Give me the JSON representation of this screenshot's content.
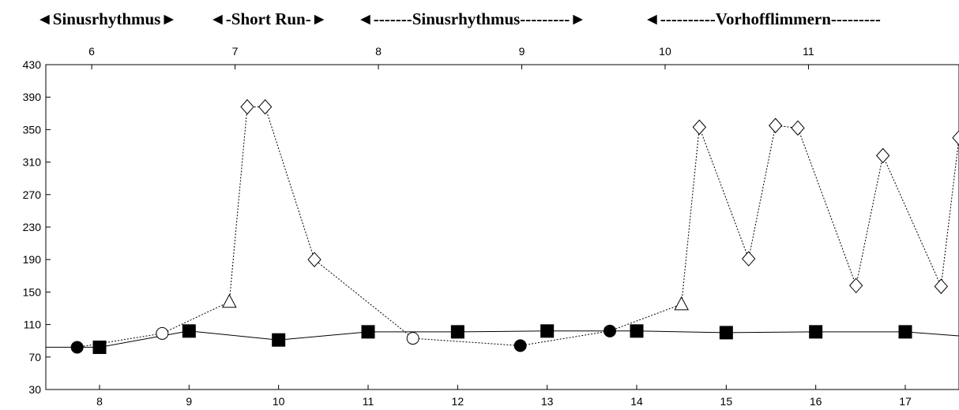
{
  "header": {
    "segments": [
      "◄Sinusrhythmus►",
      "◄-Short Run-►",
      "◄-------Sinusrhythmus---------►",
      "◄----------Vorhofflimmern---------"
    ]
  },
  "chart_data": {
    "type": "line",
    "title": "",
    "xlabel": "",
    "ylabel": "",
    "grid": false,
    "ylim": [
      30,
      430
    ],
    "yticks": [
      "30",
      "70",
      "110",
      "150",
      "190",
      "230",
      "270",
      "310",
      "350",
      "390",
      "430"
    ],
    "xlim_bottom": [
      7.4,
      17.6
    ],
    "xticks_bottom": [
      "8",
      "9",
      "10",
      "11",
      "12",
      "13",
      "14",
      "15",
      "16",
      "17"
    ],
    "xlim_top": [
      5.68,
      12.05
    ],
    "xticks_top": [
      "6",
      "7",
      "8",
      "9",
      "10",
      "11"
    ],
    "series": [
      {
        "line": "solid",
        "points": [
          {
            "x": 7.4,
            "y": 82,
            "m": "none"
          },
          {
            "x": 8.0,
            "y": 82,
            "m": "square"
          },
          {
            "x": 9.0,
            "y": 102,
            "m": "square"
          },
          {
            "x": 10.0,
            "y": 91,
            "m": "square"
          },
          {
            "x": 11.0,
            "y": 101,
            "m": "square"
          },
          {
            "x": 12.0,
            "y": 101,
            "m": "square"
          },
          {
            "x": 13.0,
            "y": 102,
            "m": "square"
          },
          {
            "x": 14.0,
            "y": 102,
            "m": "square"
          },
          {
            "x": 15.0,
            "y": 100,
            "m": "square"
          },
          {
            "x": 16.0,
            "y": 101,
            "m": "square"
          },
          {
            "x": 17.0,
            "y": 101,
            "m": "square"
          },
          {
            "x": 17.6,
            "y": 96,
            "m": "none"
          }
        ]
      },
      {
        "line": "dotted",
        "points": [
          {
            "x": 7.75,
            "y": 82,
            "m": "filled-circle"
          },
          {
            "x": 8.7,
            "y": 99,
            "m": "open-circle"
          },
          {
            "x": 9.45,
            "y": 138,
            "m": "triangle"
          },
          {
            "x": 9.65,
            "y": 378,
            "m": "diamond"
          },
          {
            "x": 9.85,
            "y": 378,
            "m": "diamond"
          },
          {
            "x": 10.4,
            "y": 190,
            "m": "diamond"
          },
          {
            "x": 11.5,
            "y": 93,
            "m": "open-circle"
          },
          {
            "x": 12.7,
            "y": 84,
            "m": "filled-circle"
          },
          {
            "x": 13.7,
            "y": 102,
            "m": "filled-circle"
          },
          {
            "x": 14.5,
            "y": 135,
            "m": "triangle"
          },
          {
            "x": 14.7,
            "y": 353,
            "m": "diamond"
          },
          {
            "x": 15.25,
            "y": 191,
            "m": "diamond"
          },
          {
            "x": 15.55,
            "y": 355,
            "m": "diamond"
          },
          {
            "x": 15.8,
            "y": 352,
            "m": "diamond"
          },
          {
            "x": 16.45,
            "y": 158,
            "m": "diamond"
          },
          {
            "x": 16.75,
            "y": 318,
            "m": "diamond"
          },
          {
            "x": 17.4,
            "y": 157,
            "m": "diamond"
          },
          {
            "x": 17.6,
            "y": 340,
            "m": "diamond"
          }
        ]
      }
    ]
  }
}
